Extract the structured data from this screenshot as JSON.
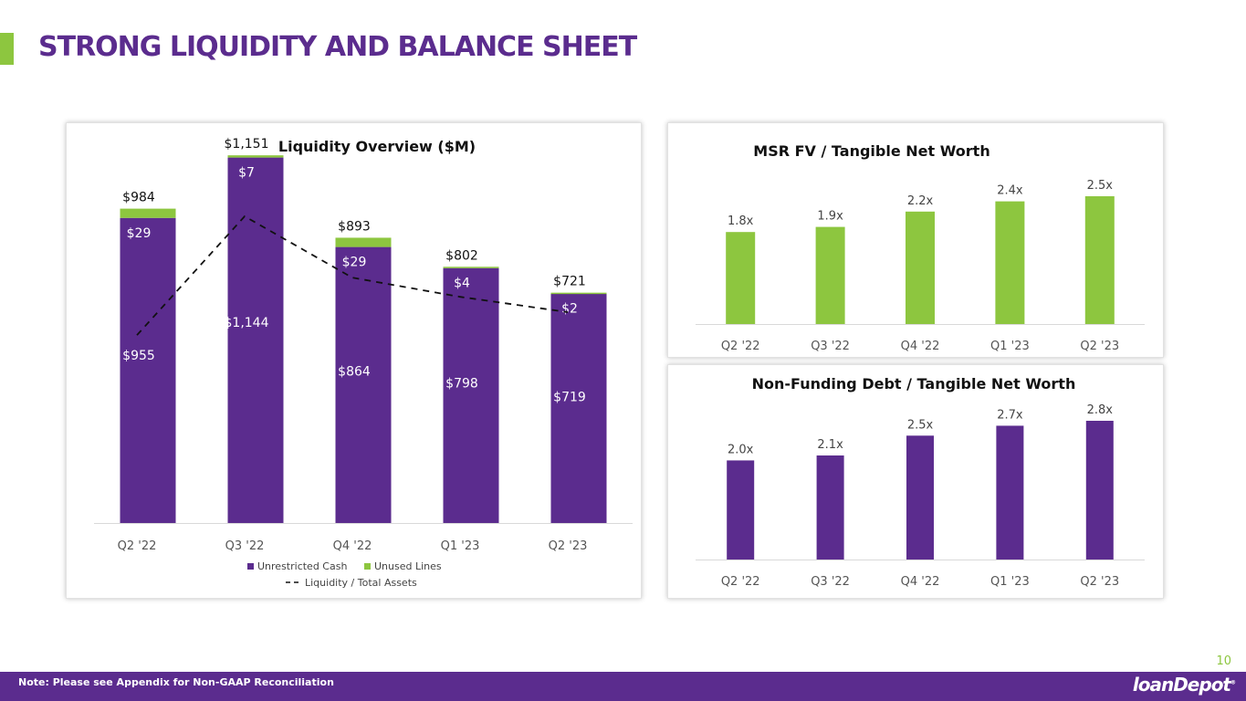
{
  "page": {
    "title": "STRONG LIQUIDITY AND BALANCE SHEET",
    "page_number": "10",
    "footer_note": "Note: Please see Appendix for Non-GAAP Reconciliation",
    "logo_text": "loanDepot",
    "logo_mark": "®"
  },
  "colors": {
    "purple": "#5B2C8E",
    "green": "#8DC63F",
    "footer": "#5B2C8E"
  },
  "chart_data": [
    {
      "type": "bar",
      "stacked": true,
      "title": "Liquidity Overview ($M)",
      "categories": [
        "Q2 '22",
        "Q3 '22",
        "Q4 '22",
        "Q1 '23",
        "Q2 '23"
      ],
      "series": [
        {
          "name": "Unrestricted Cash",
          "values": [
            955,
            1144,
            864,
            798,
            719
          ],
          "labels": [
            "$955",
            "$1,144",
            "$864",
            "$798",
            "$719"
          ],
          "color": "#5B2C8E"
        },
        {
          "name": "Unused Lines",
          "values": [
            29,
            7,
            29,
            4,
            2
          ],
          "labels": [
            "$29",
            "$7",
            "$29",
            "$4",
            "$2"
          ],
          "color": "#8DC63F"
        }
      ],
      "totals": [
        "$984",
        "$1,151",
        "$893",
        "$802",
        "$721"
      ],
      "line": {
        "name": "Liquidity / Total Assets",
        "style": "dashed",
        "values": [
          0.49,
          0.8,
          0.64,
          0.59,
          0.55
        ]
      },
      "ylim": [
        0,
        1200
      ],
      "legend": [
        "Unrestricted Cash",
        "Unused Lines",
        "Liquidity / Total Assets"
      ],
      "legend_position": "bottom"
    },
    {
      "type": "bar",
      "title": "MSR FV / Tangible Net Worth",
      "categories": [
        "Q2 '22",
        "Q3 '22",
        "Q4 '22",
        "Q1 '23",
        "Q2 '23"
      ],
      "values": [
        1.8,
        1.9,
        2.2,
        2.4,
        2.5
      ],
      "labels": [
        "1.8x",
        "1.9x",
        "2.2x",
        "2.4x",
        "2.5x"
      ],
      "color": "#8DC63F",
      "ylim": [
        0,
        2.5
      ]
    },
    {
      "type": "bar",
      "title": "Non-Funding Debt / Tangible Net Worth",
      "categories": [
        "Q2 '22",
        "Q3 '22",
        "Q4 '22",
        "Q1 '23",
        "Q2 '23"
      ],
      "values": [
        2.0,
        2.1,
        2.5,
        2.7,
        2.8
      ],
      "labels": [
        "2.0x",
        "2.1x",
        "2.5x",
        "2.7x",
        "2.8x"
      ],
      "color": "#5B2C8E",
      "ylim": [
        0,
        2.8
      ]
    }
  ]
}
